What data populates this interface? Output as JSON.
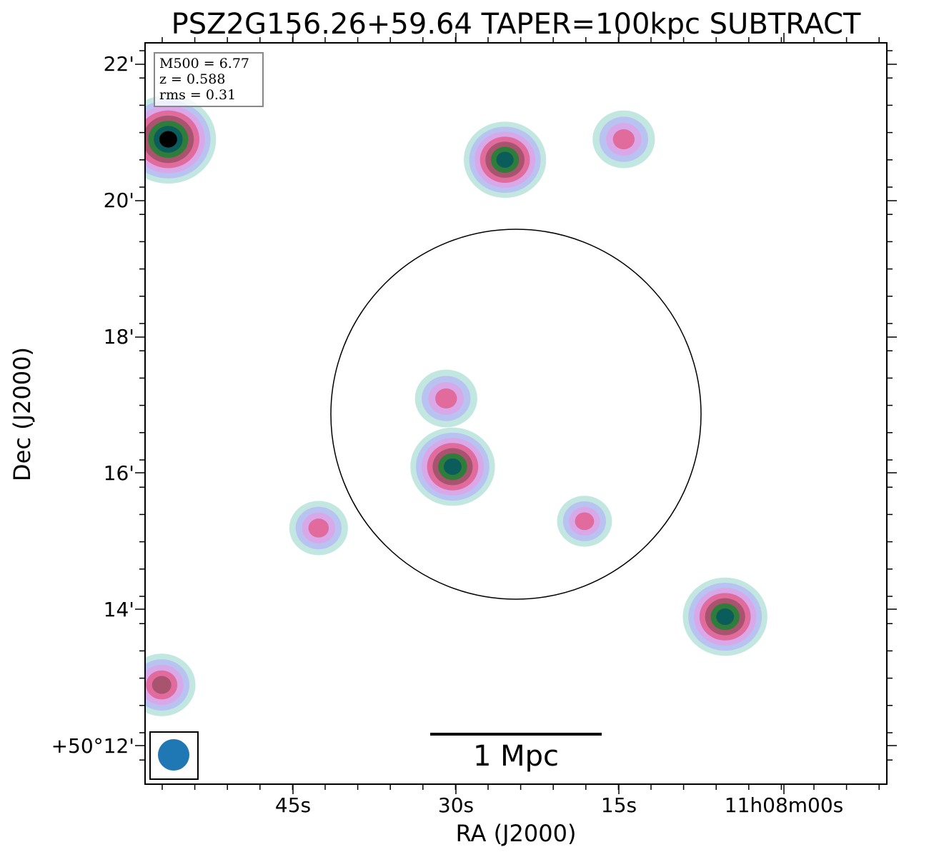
{
  "chart_data": {
    "type": "heatmap",
    "title": "PSZ2G156.26+59.64 TAPER=100kpc SUBTRACT",
    "xlabel": "RA (J2000)",
    "ylabel": "Dec (J2000)",
    "x_ticks": [
      "45s",
      "30s",
      "15s",
      "11h08m00s"
    ],
    "y_ticks": [
      "22'",
      "20'",
      "18'",
      "16'",
      "14'",
      "+50°12'"
    ],
    "info_box": {
      "m500": "M500 = 6.77",
      "z": "z = 0.588",
      "rms": "rms = 0.31"
    },
    "scale_bar_label": "1 Mpc",
    "colormap": [
      "#c2e6e0",
      "#b9c3f2",
      "#d8a8e8",
      "#e06b9c",
      "#a8546e",
      "#2e7d3a",
      "#0b5d5c",
      "#000000"
    ],
    "beam_color": "#1f77b4",
    "circle_radius_mpc": 1.08,
    "grid": false,
    "sources": [
      {
        "id": "nw-bright-source",
        "ra_s": 56.4,
        "dec_arcmin": 20.9,
        "peak": 1.0
      },
      {
        "id": "north-source",
        "ra_s": 25.5,
        "dec_arcmin": 20.6,
        "peak": 0.82
      },
      {
        "id": "ne-blob",
        "ra_s": 14.6,
        "dec_arcmin": 20.9,
        "peak": 0.55
      },
      {
        "id": "central-source",
        "ra_s": 30.3,
        "dec_arcmin": 16.1,
        "peak": 0.85
      },
      {
        "id": "central-upper",
        "ra_s": 30.9,
        "dec_arcmin": 17.1,
        "peak": 0.55
      },
      {
        "id": "east-source",
        "ra_s": 5.3,
        "dec_arcmin": 13.9,
        "peak": 0.85
      },
      {
        "id": "sw-blob",
        "ra_s": 42.6,
        "dec_arcmin": 15.2,
        "peak": 0.5
      },
      {
        "id": "south-blob",
        "ra_s": 18.2,
        "dec_arcmin": 15.3,
        "peak": 0.45
      },
      {
        "id": "sw-edge-source",
        "ra_s": 57.0,
        "dec_arcmin": 12.9,
        "peak": 0.62
      }
    ]
  }
}
